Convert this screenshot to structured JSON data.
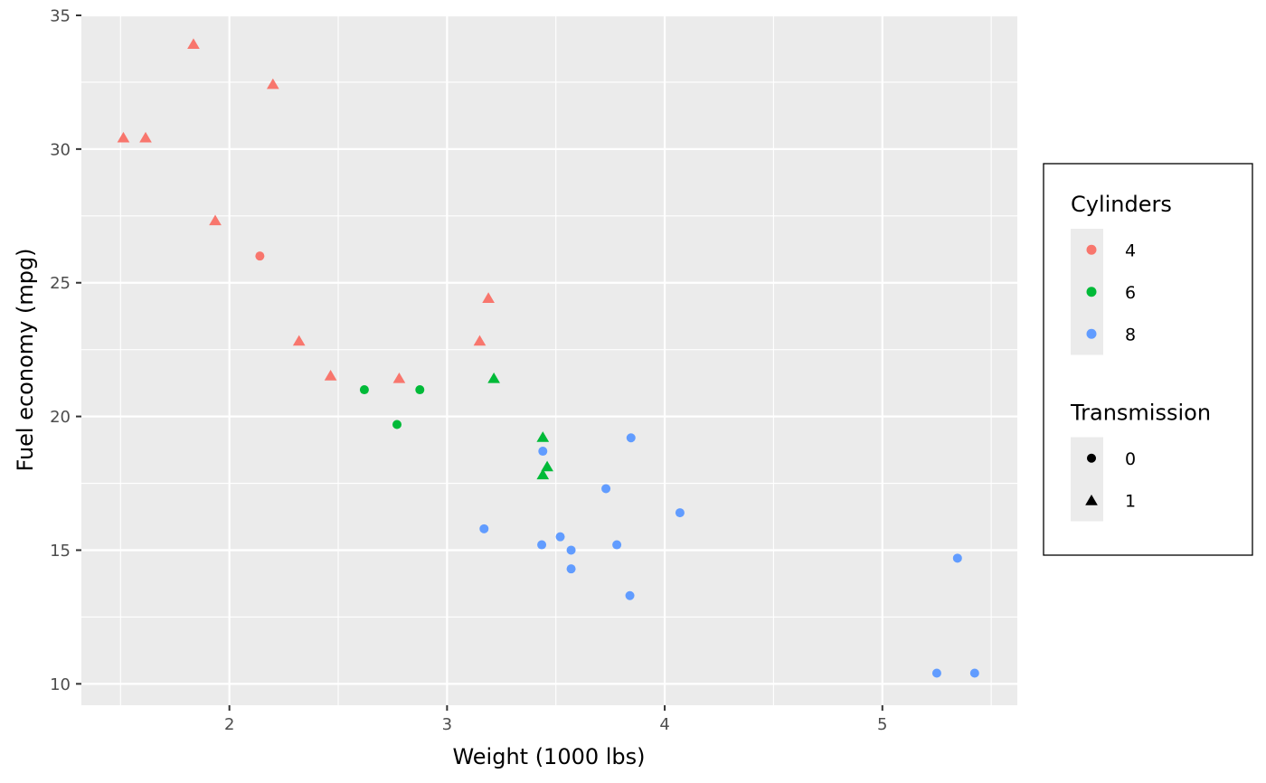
{
  "chart_data": {
    "type": "scatter",
    "title": "",
    "xlabel": "Weight (1000 lbs)",
    "ylabel": "Fuel economy (mpg)",
    "xlim": [
      1.32,
      5.62
    ],
    "ylim": [
      9.2,
      35.0
    ],
    "x_ticks": [
      2,
      3,
      4,
      5
    ],
    "x_tick_labels": [
      "2",
      "3",
      "4",
      "5"
    ],
    "y_ticks": [
      10,
      15,
      20,
      25,
      30,
      35
    ],
    "y_tick_labels": [
      "10",
      "15",
      "20",
      "25",
      "30",
      "35"
    ],
    "grid": true,
    "panel_background": "#ebebeb",
    "legend_placement": "right",
    "legends": [
      {
        "title": "Cylinders",
        "key": "cyl",
        "entries": [
          {
            "label": "4",
            "color": "#F8766D"
          },
          {
            "label": "6",
            "color": "#00BA38"
          },
          {
            "label": "8",
            "color": "#619CFF"
          }
        ]
      },
      {
        "title": "Transmission",
        "key": "am",
        "entries": [
          {
            "label": "0",
            "shape": "circle"
          },
          {
            "label": "1",
            "shape": "triangle"
          }
        ]
      }
    ],
    "points": [
      {
        "x": 1.835,
        "y": 33.9,
        "cyl": "4",
        "am": "1"
      },
      {
        "x": 2.2,
        "y": 32.4,
        "cyl": "4",
        "am": "1"
      },
      {
        "x": 1.513,
        "y": 30.4,
        "cyl": "4",
        "am": "1"
      },
      {
        "x": 1.615,
        "y": 30.4,
        "cyl": "4",
        "am": "1"
      },
      {
        "x": 1.935,
        "y": 27.3,
        "cyl": "4",
        "am": "1"
      },
      {
        "x": 2.14,
        "y": 26.0,
        "cyl": "4",
        "am": "0"
      },
      {
        "x": 3.19,
        "y": 24.4,
        "cyl": "4",
        "am": "1"
      },
      {
        "x": 2.32,
        "y": 22.8,
        "cyl": "4",
        "am": "1"
      },
      {
        "x": 3.15,
        "y": 22.8,
        "cyl": "4",
        "am": "1"
      },
      {
        "x": 2.465,
        "y": 21.5,
        "cyl": "4",
        "am": "1"
      },
      {
        "x": 2.78,
        "y": 21.4,
        "cyl": "4",
        "am": "1"
      },
      {
        "x": 2.62,
        "y": 21.0,
        "cyl": "6",
        "am": "0"
      },
      {
        "x": 2.875,
        "y": 21.0,
        "cyl": "6",
        "am": "0"
      },
      {
        "x": 2.77,
        "y": 19.7,
        "cyl": "6",
        "am": "0"
      },
      {
        "x": 3.215,
        "y": 21.4,
        "cyl": "6",
        "am": "1"
      },
      {
        "x": 3.44,
        "y": 19.2,
        "cyl": "6",
        "am": "1"
      },
      {
        "x": 3.46,
        "y": 18.1,
        "cyl": "6",
        "am": "1"
      },
      {
        "x": 3.44,
        "y": 17.8,
        "cyl": "6",
        "am": "1"
      },
      {
        "x": 3.44,
        "y": 18.7,
        "cyl": "8",
        "am": "0"
      },
      {
        "x": 3.845,
        "y": 19.2,
        "cyl": "8",
        "am": "0"
      },
      {
        "x": 3.73,
        "y": 17.3,
        "cyl": "8",
        "am": "0"
      },
      {
        "x": 4.07,
        "y": 16.4,
        "cyl": "8",
        "am": "0"
      },
      {
        "x": 3.17,
        "y": 15.8,
        "cyl": "8",
        "am": "0"
      },
      {
        "x": 3.52,
        "y": 15.5,
        "cyl": "8",
        "am": "0"
      },
      {
        "x": 3.435,
        "y": 15.2,
        "cyl": "8",
        "am": "0"
      },
      {
        "x": 3.78,
        "y": 15.2,
        "cyl": "8",
        "am": "0"
      },
      {
        "x": 3.57,
        "y": 15.0,
        "cyl": "8",
        "am": "0"
      },
      {
        "x": 3.57,
        "y": 14.3,
        "cyl": "8",
        "am": "0"
      },
      {
        "x": 3.84,
        "y": 13.3,
        "cyl": "8",
        "am": "0"
      },
      {
        "x": 5.345,
        "y": 14.7,
        "cyl": "8",
        "am": "0"
      },
      {
        "x": 5.25,
        "y": 10.4,
        "cyl": "8",
        "am": "0"
      },
      {
        "x": 5.424,
        "y": 10.4,
        "cyl": "8",
        "am": "0"
      }
    ]
  }
}
